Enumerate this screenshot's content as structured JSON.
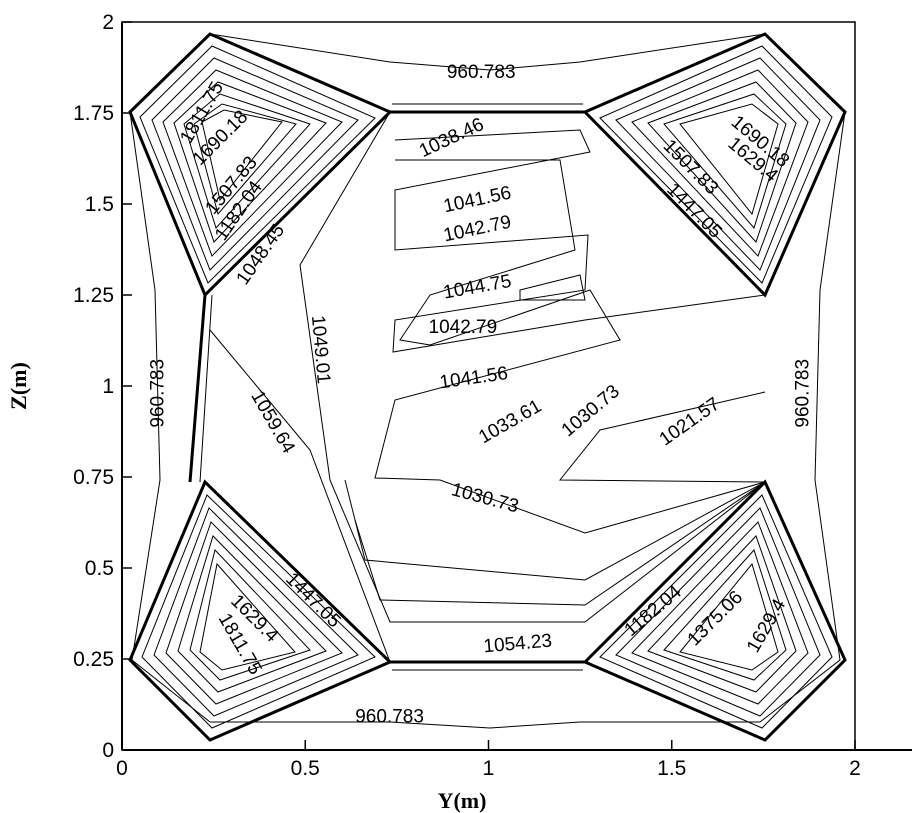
{
  "chart_data": {
    "type": "contour",
    "xlabel": "Y(m)",
    "ylabel": "Z(m)",
    "xlim": [
      0,
      2.2
    ],
    "ylim": [
      0,
      2
    ],
    "xticks": [
      "0",
      "0.5",
      "1",
      "1.5",
      "2"
    ],
    "xtick_values": [
      0,
      0.5,
      1,
      1.5,
      2
    ],
    "yticks": [
      "0",
      "0.25",
      "0.5",
      "0.75",
      "1",
      "1.25",
      "1.5",
      "1.75",
      "2"
    ],
    "ytick_values": [
      0,
      0.25,
      0.5,
      0.75,
      1,
      1.25,
      1.5,
      1.75,
      2
    ],
    "contour_labels": [
      {
        "text": "960.783",
        "x": 0.98,
        "z": 1.86,
        "angle": 0
      },
      {
        "text": "960.783",
        "x": 0.1,
        "z": 0.98,
        "angle": -90
      },
      {
        "text": "960.783",
        "x": 1.86,
        "z": 0.98,
        "angle": -90
      },
      {
        "text": "960.783",
        "x": 0.73,
        "z": 0.09,
        "angle": 0
      },
      {
        "text": "1811.75",
        "x": 0.22,
        "z": 1.75,
        "angle": -60
      },
      {
        "text": "1690.18",
        "x": 0.27,
        "z": 1.68,
        "angle": -45
      },
      {
        "text": "1507.83",
        "x": 0.3,
        "z": 1.55,
        "angle": -50
      },
      {
        "text": "1182.04",
        "x": 0.32,
        "z": 1.48,
        "angle": -55
      },
      {
        "text": "1048.45",
        "x": 0.38,
        "z": 1.36,
        "angle": -55
      },
      {
        "text": "1038.46",
        "x": 0.9,
        "z": 1.68,
        "angle": -25
      },
      {
        "text": "1041.56",
        "x": 0.97,
        "z": 1.51,
        "angle": -12
      },
      {
        "text": "1042.79",
        "x": 0.97,
        "z": 1.43,
        "angle": -12
      },
      {
        "text": "1044.75",
        "x": 0.97,
        "z": 1.27,
        "angle": -10
      },
      {
        "text": "1042.79",
        "x": 0.93,
        "z": 1.16,
        "angle": 0
      },
      {
        "text": "1041.56",
        "x": 0.96,
        "z": 1.02,
        "angle": -8
      },
      {
        "text": "1049.01",
        "x": 0.54,
        "z": 1.1,
        "angle": 85
      },
      {
        "text": "1059.64",
        "x": 0.41,
        "z": 0.9,
        "angle": 60
      },
      {
        "text": "1033.61",
        "x": 1.06,
        "z": 0.9,
        "angle": -30
      },
      {
        "text": "1030.73",
        "x": 1.28,
        "z": 0.93,
        "angle": -40
      },
      {
        "text": "1021.57",
        "x": 1.55,
        "z": 0.9,
        "angle": -35
      },
      {
        "text": "1030.73",
        "x": 0.99,
        "z": 0.69,
        "angle": 15
      },
      {
        "text": "1690.18",
        "x": 1.74,
        "z": 1.67,
        "angle": 40
      },
      {
        "text": "1629.4",
        "x": 1.72,
        "z": 1.62,
        "angle": 40
      },
      {
        "text": "1507.83",
        "x": 1.55,
        "z": 1.6,
        "angle": 45
      },
      {
        "text": "1447.05",
        "x": 1.56,
        "z": 1.48,
        "angle": 45
      },
      {
        "text": "1447.05",
        "x": 0.52,
        "z": 0.41,
        "angle": 45
      },
      {
        "text": "1629.4",
        "x": 0.36,
        "z": 0.36,
        "angle": 45
      },
      {
        "text": "1811.75",
        "x": 0.32,
        "z": 0.29,
        "angle": 60
      },
      {
        "text": "1054.23",
        "x": 1.08,
        "z": 0.29,
        "angle": -5
      },
      {
        "text": "1182.04",
        "x": 1.45,
        "z": 0.38,
        "angle": -40
      },
      {
        "text": "1375.06",
        "x": 1.62,
        "z": 0.36,
        "angle": -45
      },
      {
        "text": "1629.4",
        "x": 1.76,
        "z": 0.34,
        "angle": -60
      }
    ]
  }
}
